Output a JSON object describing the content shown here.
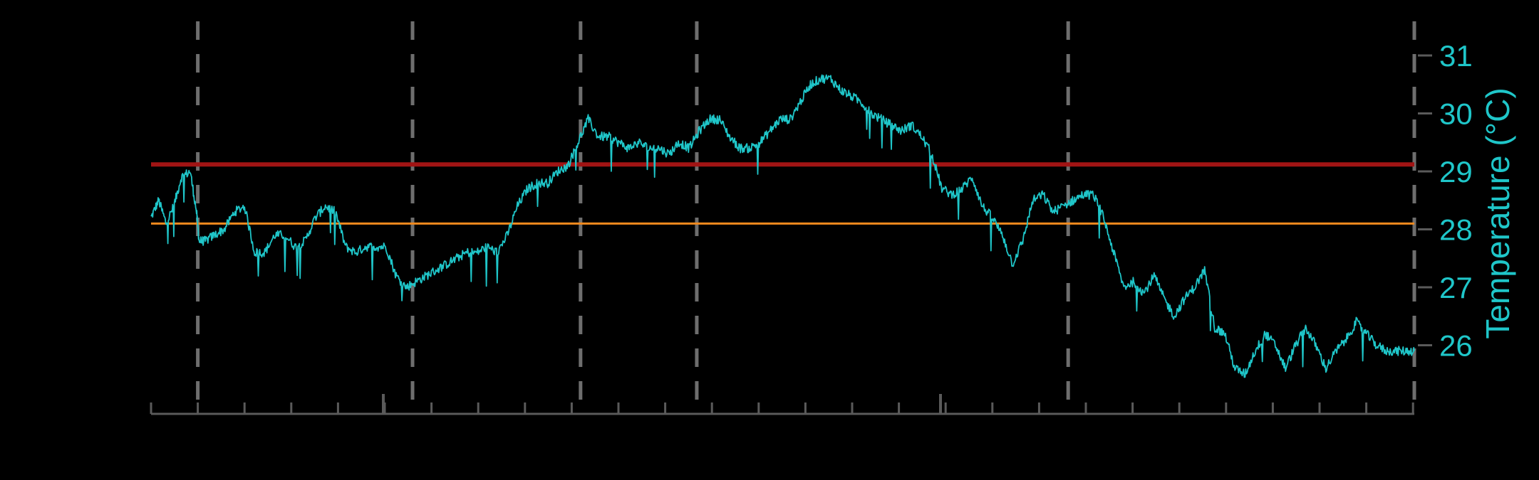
{
  "chart_data": {
    "type": "line",
    "title": "",
    "xlabel": "",
    "ylabel": "Temperature (°C)",
    "ylim": [
      25.2,
      31.4
    ],
    "xlim": [
      0,
      100
    ],
    "y_ticks": [
      26,
      27,
      28,
      29,
      30,
      31
    ],
    "y_tick_labels": [
      "26",
      "27",
      "28",
      "29",
      "30",
      "31"
    ],
    "y_axis_side": "right",
    "x_tick_labels_shown": false,
    "grid": false,
    "legend": "none",
    "series": [
      {
        "color": "#1fc6c9",
        "x": [
          0,
          0.6,
          1.2,
          1.8,
          2.4,
          3.1,
          3.6,
          3.8,
          4.3,
          5.0,
          5.8,
          6.6,
          7.4,
          8.2,
          9.0,
          9.8,
          10.6,
          11.4,
          12.2,
          13.0,
          13.8,
          14.6,
          15.4,
          16.2,
          17.0,
          17.8,
          18.6,
          19.4,
          20.2,
          21.0,
          21.8,
          22.6,
          23.4,
          24.2,
          25.0,
          25.8,
          26.6,
          27.4,
          28.2,
          29.0,
          29.8,
          30.6,
          31.4,
          32.2,
          33.0,
          33.8,
          34.6,
          35.4,
          36.2,
          37.0,
          37.8,
          38.6,
          39.4,
          40.2,
          41.0,
          41.8,
          42.6,
          43.4,
          44.2,
          45.0,
          45.8,
          46.6,
          47.4,
          48.2,
          49.0,
          49.8,
          50.6,
          51.4,
          52.2,
          53.0,
          53.8,
          54.6,
          55.4,
          56.2,
          57.0,
          57.8,
          58.6,
          59.4,
          60.2,
          61.0,
          61.8,
          62.6,
          63.4,
          64.2,
          65.0,
          65.8,
          66.6,
          67.4,
          68.2,
          69.0,
          69.8,
          70.6,
          71.4,
          72.2,
          73.0,
          73.8,
          74.6,
          75.4,
          76.2,
          77.0,
          77.8,
          78.6,
          79.4,
          80.2,
          81.0,
          81.8,
          82.6,
          83.4,
          84.2,
          85.0,
          85.8,
          86.6,
          87.4,
          88.2,
          89.0,
          89.8,
          90.6,
          91.4,
          92.2,
          93.0,
          93.8,
          94.6,
          95.4,
          96.2,
          97.0,
          97.8,
          98.6,
          99.4,
          100
        ],
        "values": [
          28.2,
          28.5,
          28.1,
          28.4,
          28.9,
          29.0,
          28.3,
          27.8,
          27.8,
          27.9,
          28.0,
          28.3,
          28.4,
          27.6,
          27.6,
          27.9,
          27.9,
          27.7,
          27.8,
          28.2,
          28.4,
          28.3,
          27.7,
          27.6,
          27.7,
          27.7,
          27.7,
          27.2,
          27.0,
          27.1,
          27.2,
          27.3,
          27.4,
          27.5,
          27.6,
          27.6,
          27.7,
          27.6,
          27.9,
          28.4,
          28.7,
          28.8,
          28.8,
          29.0,
          29.1,
          29.5,
          29.9,
          29.6,
          29.6,
          29.5,
          29.4,
          29.5,
          29.4,
          29.4,
          29.3,
          29.5,
          29.4,
          29.7,
          29.9,
          29.9,
          29.6,
          29.4,
          29.4,
          29.5,
          29.7,
          29.9,
          29.9,
          30.2,
          30.5,
          30.6,
          30.6,
          30.4,
          30.3,
          30.2,
          30.0,
          29.9,
          29.8,
          29.7,
          29.8,
          29.6,
          29.3,
          28.7,
          28.6,
          28.7,
          28.9,
          28.4,
          28.2,
          27.9,
          27.4,
          27.8,
          28.5,
          28.6,
          28.3,
          28.4,
          28.5,
          28.6,
          28.6,
          28.2,
          27.6,
          27.0,
          27.1,
          26.9,
          27.2,
          26.8,
          26.5,
          26.8,
          27.0,
          27.3,
          26.3,
          26.2,
          25.6,
          25.5,
          25.9,
          26.2,
          26.0,
          25.6,
          26.0,
          26.3,
          26.0,
          25.6,
          25.9,
          26.1,
          26.4,
          26.2,
          26.0,
          25.9,
          25.9,
          25.9,
          25.9
        ]
      }
    ],
    "reference_lines": [
      {
        "y": 29.12,
        "color": "#a11414"
      },
      {
        "y": 28.1,
        "color": "#f28a1e"
      }
    ],
    "event_markers_x": [
      3.7,
      20.7,
      34.0,
      43.2,
      72.6,
      100
    ],
    "event_marker_color": "#6e6e6e"
  }
}
